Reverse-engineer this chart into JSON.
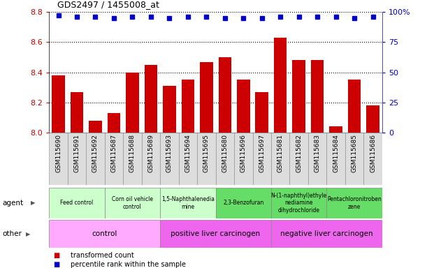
{
  "title": "GDS2497 / 1455008_at",
  "samples": [
    "GSM115690",
    "GSM115691",
    "GSM115692",
    "GSM115687",
    "GSM115688",
    "GSM115689",
    "GSM115693",
    "GSM115694",
    "GSM115695",
    "GSM115680",
    "GSM115696",
    "GSM115697",
    "GSM115681",
    "GSM115682",
    "GSM115683",
    "GSM115684",
    "GSM115685",
    "GSM115686"
  ],
  "transformed_count": [
    8.38,
    8.27,
    8.08,
    8.13,
    8.4,
    8.45,
    8.31,
    8.35,
    8.47,
    8.5,
    8.35,
    8.27,
    8.63,
    8.48,
    8.48,
    8.04,
    8.35,
    8.18
  ],
  "percentile_rank": [
    97,
    96,
    96,
    95,
    96,
    96,
    95,
    96,
    96,
    95,
    95,
    95,
    96,
    96,
    96,
    96,
    95,
    96
  ],
  "bar_color": "#cc0000",
  "dot_color": "#0000cc",
  "ylim": [
    8.0,
    8.8
  ],
  "yticks": [
    8.0,
    8.2,
    8.4,
    8.6,
    8.8
  ],
  "y2lim": [
    0,
    100
  ],
  "y2ticks": [
    0,
    25,
    50,
    75,
    100
  ],
  "y2ticklabels": [
    "0",
    "25",
    "50",
    "75",
    "100%"
  ],
  "agent_groups": [
    {
      "label": "Feed control",
      "start": 0,
      "end": 3,
      "color": "#ccffcc"
    },
    {
      "label": "Corn oil vehicle\ncontrol",
      "start": 3,
      "end": 6,
      "color": "#ccffcc"
    },
    {
      "label": "1,5-Naphthalenedia\nmine",
      "start": 6,
      "end": 9,
      "color": "#ccffcc"
    },
    {
      "label": "2,3-Benzofuran",
      "start": 9,
      "end": 12,
      "color": "#66dd66"
    },
    {
      "label": "N-(1-naphthyl)ethyle\nnediamine\ndihydrochloride",
      "start": 12,
      "end": 15,
      "color": "#66dd66"
    },
    {
      "label": "Pentachloronitroben\nzene",
      "start": 15,
      "end": 18,
      "color": "#66dd66"
    }
  ],
  "other_groups": [
    {
      "label": "control",
      "start": 0,
      "end": 6,
      "color": "#ffaaff"
    },
    {
      "label": "positive liver carcinogen",
      "start": 6,
      "end": 12,
      "color": "#ee66ee"
    },
    {
      "label": "negative liver carcinogen",
      "start": 12,
      "end": 18,
      "color": "#ee66ee"
    }
  ],
  "agent_label": "agent",
  "other_label": "other",
  "legend_items": [
    {
      "color": "#cc0000",
      "label": "transformed count"
    },
    {
      "color": "#0000cc",
      "label": "percentile rank within the sample"
    }
  ],
  "tick_bg_color": "#dddddd"
}
